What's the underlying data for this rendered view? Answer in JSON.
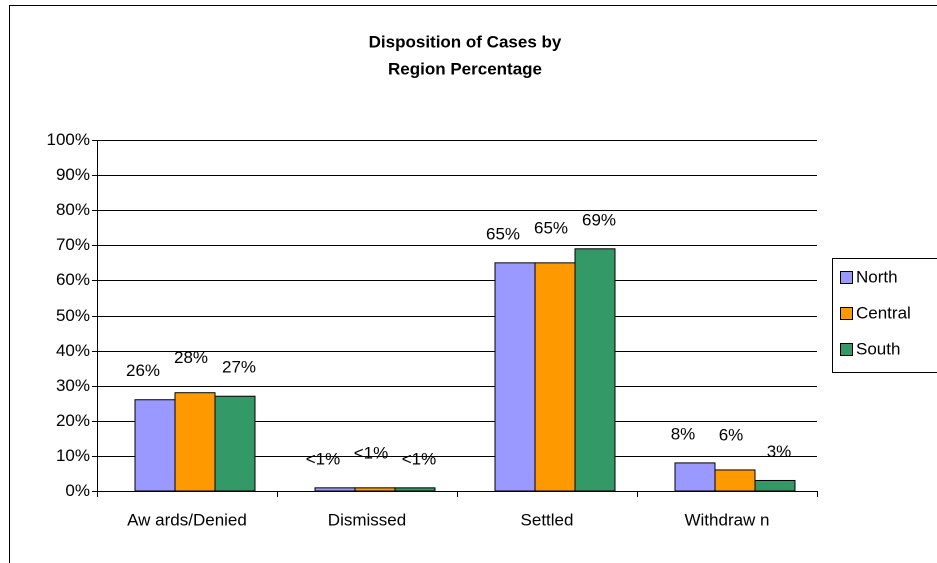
{
  "chart_data": {
    "type": "bar",
    "title": [
      "Disposition of Cases by",
      "Region Percentage"
    ],
    "categories": [
      "Aw ards/Denied",
      "Dismissed",
      "Settled",
      "Withdraw n"
    ],
    "series": [
      {
        "name": "North",
        "color": "#9999ff",
        "values": [
          26,
          0.9,
          65,
          8
        ],
        "value_labels": [
          "26%",
          "<1%",
          "65%",
          "8%"
        ]
      },
      {
        "name": "Central",
        "color": "#ff9900",
        "values": [
          28,
          0.9,
          65,
          6
        ],
        "value_labels": [
          "28%",
          "<1%",
          "65%",
          "6%"
        ]
      },
      {
        "name": "South",
        "color": "#339966",
        "values": [
          27,
          0.9,
          69,
          3
        ],
        "value_labels": [
          "27%",
          "<1%",
          "69%",
          "3%"
        ]
      }
    ],
    "ylim": [
      0,
      100
    ],
    "yticks": [
      {
        "value": 0,
        "label": "0%"
      },
      {
        "value": 10,
        "label": "10%"
      },
      {
        "value": 20,
        "label": "20%"
      },
      {
        "value": 30,
        "label": "30%"
      },
      {
        "value": 40,
        "label": "40%"
      },
      {
        "value": 50,
        "label": "50%"
      },
      {
        "value": 60,
        "label": "60%"
      },
      {
        "value": 70,
        "label": "70%"
      },
      {
        "value": 80,
        "label": "80%"
      },
      {
        "value": 90,
        "label": "90%"
      },
      {
        "value": 100,
        "label": "100%"
      }
    ],
    "grid": true,
    "legend": "right"
  }
}
